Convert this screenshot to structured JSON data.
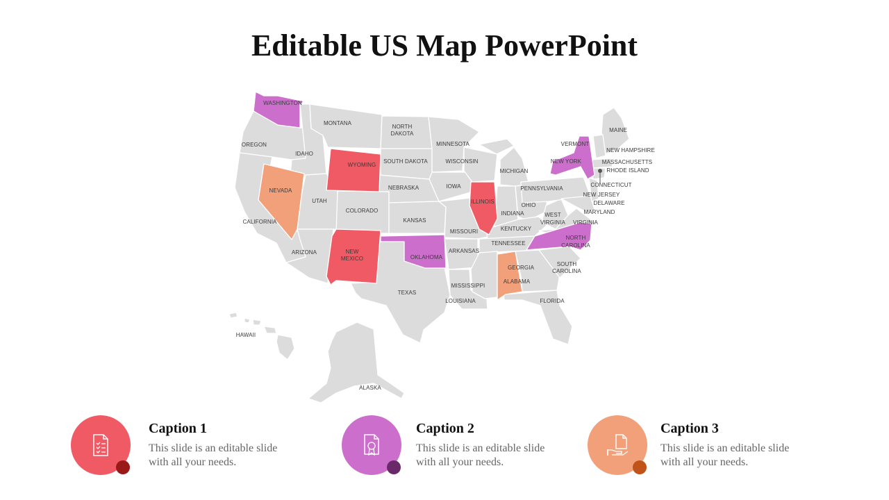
{
  "title": "Editable US Map PowerPoint",
  "colors": {
    "base": "#dcdcdc",
    "red": "#f05a64",
    "purple": "#cc6fcc",
    "orange": "#f2a07a",
    "dot_red": "#9a1a1a",
    "dot_purple": "#6a2a6a",
    "dot_orange": "#c0521a"
  },
  "map": {
    "labels": {
      "washington": "WASHINGTON",
      "oregon": "OREGON",
      "california": "CALIFORNIA",
      "nevada": "NEVADA",
      "idaho": "IDAHO",
      "montana": "MONTANA",
      "wyoming": "WYOMING",
      "utah": "UTAH",
      "arizona": "ARIZONA",
      "colorado": "COLORADO",
      "new_mexico_1": "NEW",
      "new_mexico_2": "MEXICO",
      "north_dakota_1": "NORTH",
      "north_dakota_2": "DAKOTA",
      "south_dakota": "SOUTH DAKOTA",
      "nebraska": "NEBRASKA",
      "kansas": "KANSAS",
      "oklahoma": "OKLAHOMA",
      "texas": "TEXAS",
      "minnesota": "MINNESOTA",
      "iowa": "IOWA",
      "missouri": "MISSOURI",
      "arkansas": "ARKANSAS",
      "louisiana": "LOUISIANA",
      "wisconsin": "WISCONSIN",
      "illinois": "ILLINOIS",
      "mississippi": "MISSISSIPPI",
      "michigan": "MICHIGAN",
      "indiana": "INDIANA",
      "ohio": "OHIO",
      "kentucky": "KENTUCKY",
      "tennessee": "TENNESSEE",
      "alabama": "ALABAMA",
      "georgia": "GEORGIA",
      "florida": "FLORIDA",
      "south_carolina_1": "SOUTH",
      "south_carolina_2": "CAROLINA",
      "north_carolina_1": "NORTH",
      "north_carolina_2": "CAROLINA",
      "virginia": "VIRGINIA",
      "west_virginia_1": "WEST",
      "west_virginia_2": "VIRGINIA",
      "pennsylvania": "PENNSYLVANIA",
      "new_york": "NEW YORK",
      "vermont": "VERMONT",
      "maine": "MAINE",
      "new_hampshire": "NEW HAMPSHIRE",
      "massachusetts": "MASSACHUSETTS",
      "rhode_island": "RHODE ISLAND",
      "connecticut": "CONNECTICUT",
      "new_jersey": "NEW JERSEY",
      "delaware": "DELAWARE",
      "maryland": "MARYLAND",
      "hawaii": "HAWAII",
      "alaska": "ALASKA"
    }
  },
  "captions": [
    {
      "title": "Caption 1",
      "text": "This slide is an editable slide with all your needs.",
      "icon": "checklist-document-icon"
    },
    {
      "title": "Caption 2",
      "text": "This slide is an editable slide with all your needs.",
      "icon": "certificate-document-icon"
    },
    {
      "title": "Caption 3",
      "text": "This slide is an editable slide with all your needs.",
      "icon": "hand-document-icon"
    }
  ]
}
